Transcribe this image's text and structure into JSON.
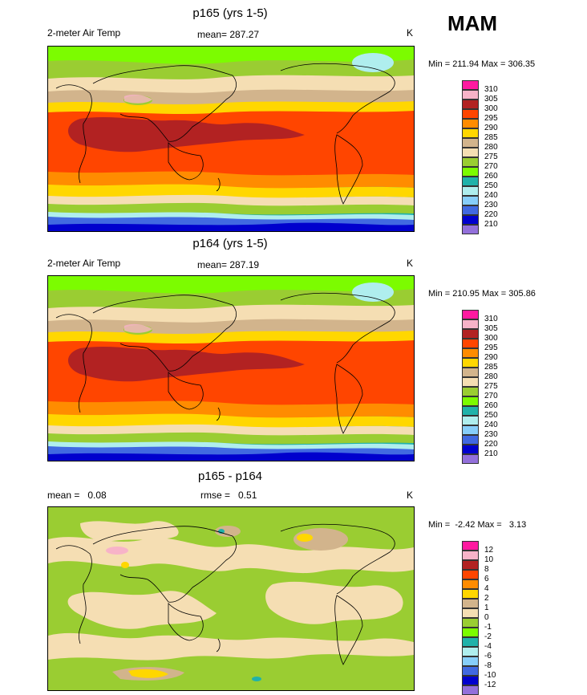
{
  "season": "MAM",
  "panels": [
    {
      "title": "p165 (yrs 1-5)",
      "left": "2-meter Air Temp",
      "mean": "mean= 287.27",
      "units": "K",
      "minmax": "Min = 211.94 Max = 306.35",
      "ticks": [
        "310",
        "305",
        "300",
        "295",
        "290",
        "285",
        "280",
        "275",
        "270",
        "260",
        "250",
        "240",
        "230",
        "220",
        "210"
      ],
      "colors": [
        "#ff1aa0",
        "#f7b3c8",
        "#b22222",
        "#ff4500",
        "#ff8c00",
        "#ffd700",
        "#d2b48c",
        "#f5deb3",
        "#9acd32",
        "#7cfc00",
        "#20b2aa",
        "#afeeee",
        "#87cefa",
        "#4169e1",
        "#0000cd",
        "#9370db"
      ]
    },
    {
      "title": "p164 (yrs 1-5)",
      "left": "2-meter Air Temp",
      "mean": "mean= 287.19",
      "units": "K",
      "minmax": "Min = 210.95 Max = 305.86",
      "ticks": [
        "310",
        "305",
        "300",
        "295",
        "290",
        "285",
        "280",
        "275",
        "270",
        "260",
        "250",
        "240",
        "230",
        "220",
        "210"
      ],
      "colors": [
        "#ff1aa0",
        "#f7b3c8",
        "#b22222",
        "#ff4500",
        "#ff8c00",
        "#ffd700",
        "#d2b48c",
        "#f5deb3",
        "#9acd32",
        "#7cfc00",
        "#20b2aa",
        "#afeeee",
        "#87cefa",
        "#4169e1",
        "#0000cd",
        "#9370db"
      ]
    },
    {
      "title": "p165 - p164",
      "left": "mean =   0.08",
      "mean": "rmse =   0.51",
      "units": "K",
      "minmax": "Min =  -2.42 Max =   3.13",
      "ticks": [
        "12",
        "10",
        "8",
        "6",
        "4",
        "2",
        "1",
        "0",
        "-1",
        "-2",
        "-4",
        "-6",
        "-8",
        "-10",
        "-12"
      ],
      "colors": [
        "#ff1aa0",
        "#f7b3c8",
        "#b22222",
        "#ff4500",
        "#ff8c00",
        "#ffd700",
        "#d2b48c",
        "#f5deb3",
        "#9acd32",
        "#7cfc00",
        "#20b2aa",
        "#afeeee",
        "#87cefa",
        "#4169e1",
        "#0000cd",
        "#9370db"
      ]
    }
  ]
}
